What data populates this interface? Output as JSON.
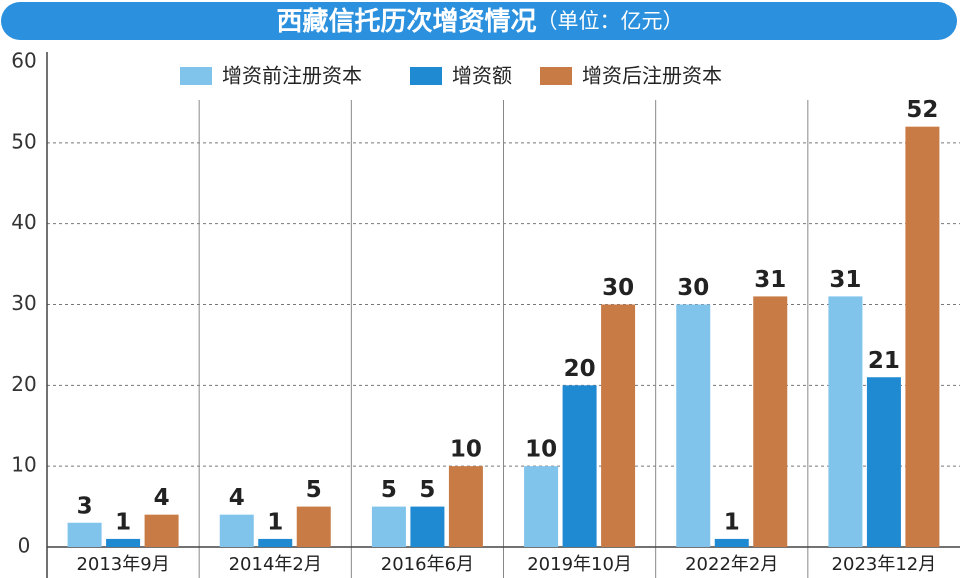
{
  "chart_data": {
    "type": "bar",
    "title": "西藏信托历次增资情况",
    "subtitle": "（单位：亿元）",
    "categories": [
      "2013年9月",
      "2014年2月",
      "2016年6月",
      "2019年10月",
      "2022年2月",
      "2023年12月"
    ],
    "series": [
      {
        "name": "增资前注册资本",
        "color": "#80c4ec",
        "values": [
          3,
          4,
          5,
          10,
          30,
          31
        ]
      },
      {
        "name": "增资额",
        "color": "#1f89d2",
        "values": [
          1,
          1,
          5,
          20,
          1,
          21
        ]
      },
      {
        "name": "增资后注册资本",
        "color": "#c97b45",
        "values": [
          4,
          5,
          10,
          30,
          31,
          52
        ]
      }
    ],
    "ylim": [
      0,
      60
    ],
    "yticks": [
      0,
      10,
      20,
      30,
      40,
      50,
      60
    ],
    "grid": true
  }
}
